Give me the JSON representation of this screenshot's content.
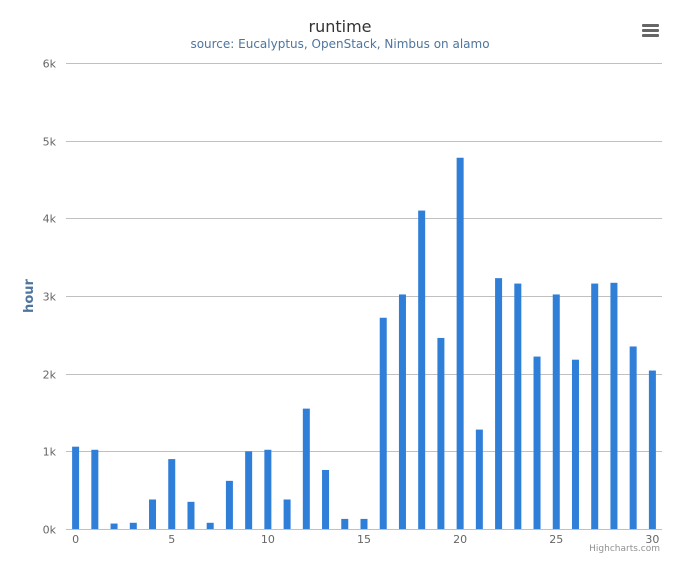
{
  "header": {
    "title": "runtime",
    "subtitle": "source: Eucalyptus, OpenStack, Nimbus on alamo",
    "menu_icon": "hamburger-menu-icon"
  },
  "credits": "Highcharts.com",
  "colors": {
    "bar": "#2f7ed8",
    "grid": "#c0c0c0",
    "axis_label": "#4d759e",
    "tick_label": "#666666"
  },
  "chart_data": {
    "type": "bar",
    "title": "runtime",
    "subtitle": "source: Eucalyptus, OpenStack, Nimbus on alamo",
    "xlabel": "",
    "ylabel": "hour",
    "x": [
      0,
      1,
      2,
      3,
      4,
      5,
      6,
      7,
      8,
      9,
      10,
      11,
      12,
      13,
      14,
      15,
      16,
      17,
      18,
      19,
      20,
      21,
      22,
      23,
      24,
      25,
      26,
      27,
      28,
      29,
      30
    ],
    "values": [
      1060,
      1020,
      70,
      80,
      380,
      900,
      350,
      80,
      620,
      1000,
      1020,
      380,
      1550,
      760,
      130,
      130,
      2720,
      3020,
      4100,
      2460,
      4780,
      1280,
      3230,
      3160,
      2220,
      3020,
      2180,
      3160,
      3170,
      2350,
      2040
    ],
    "ylim": [
      0,
      6000
    ],
    "xlim": [
      -0.5,
      30.5
    ],
    "y_ticks": [
      0,
      1000,
      2000,
      3000,
      4000,
      5000,
      6000
    ],
    "y_tick_labels": [
      "0k",
      "1k",
      "2k",
      "3k",
      "4k",
      "5k",
      "6k"
    ],
    "x_ticks": [
      0,
      5,
      10,
      15,
      20,
      25,
      30
    ],
    "x_tick_labels": [
      "0",
      "5",
      "10",
      "15",
      "20",
      "25",
      "30"
    ],
    "grid": true,
    "legend": "none"
  }
}
